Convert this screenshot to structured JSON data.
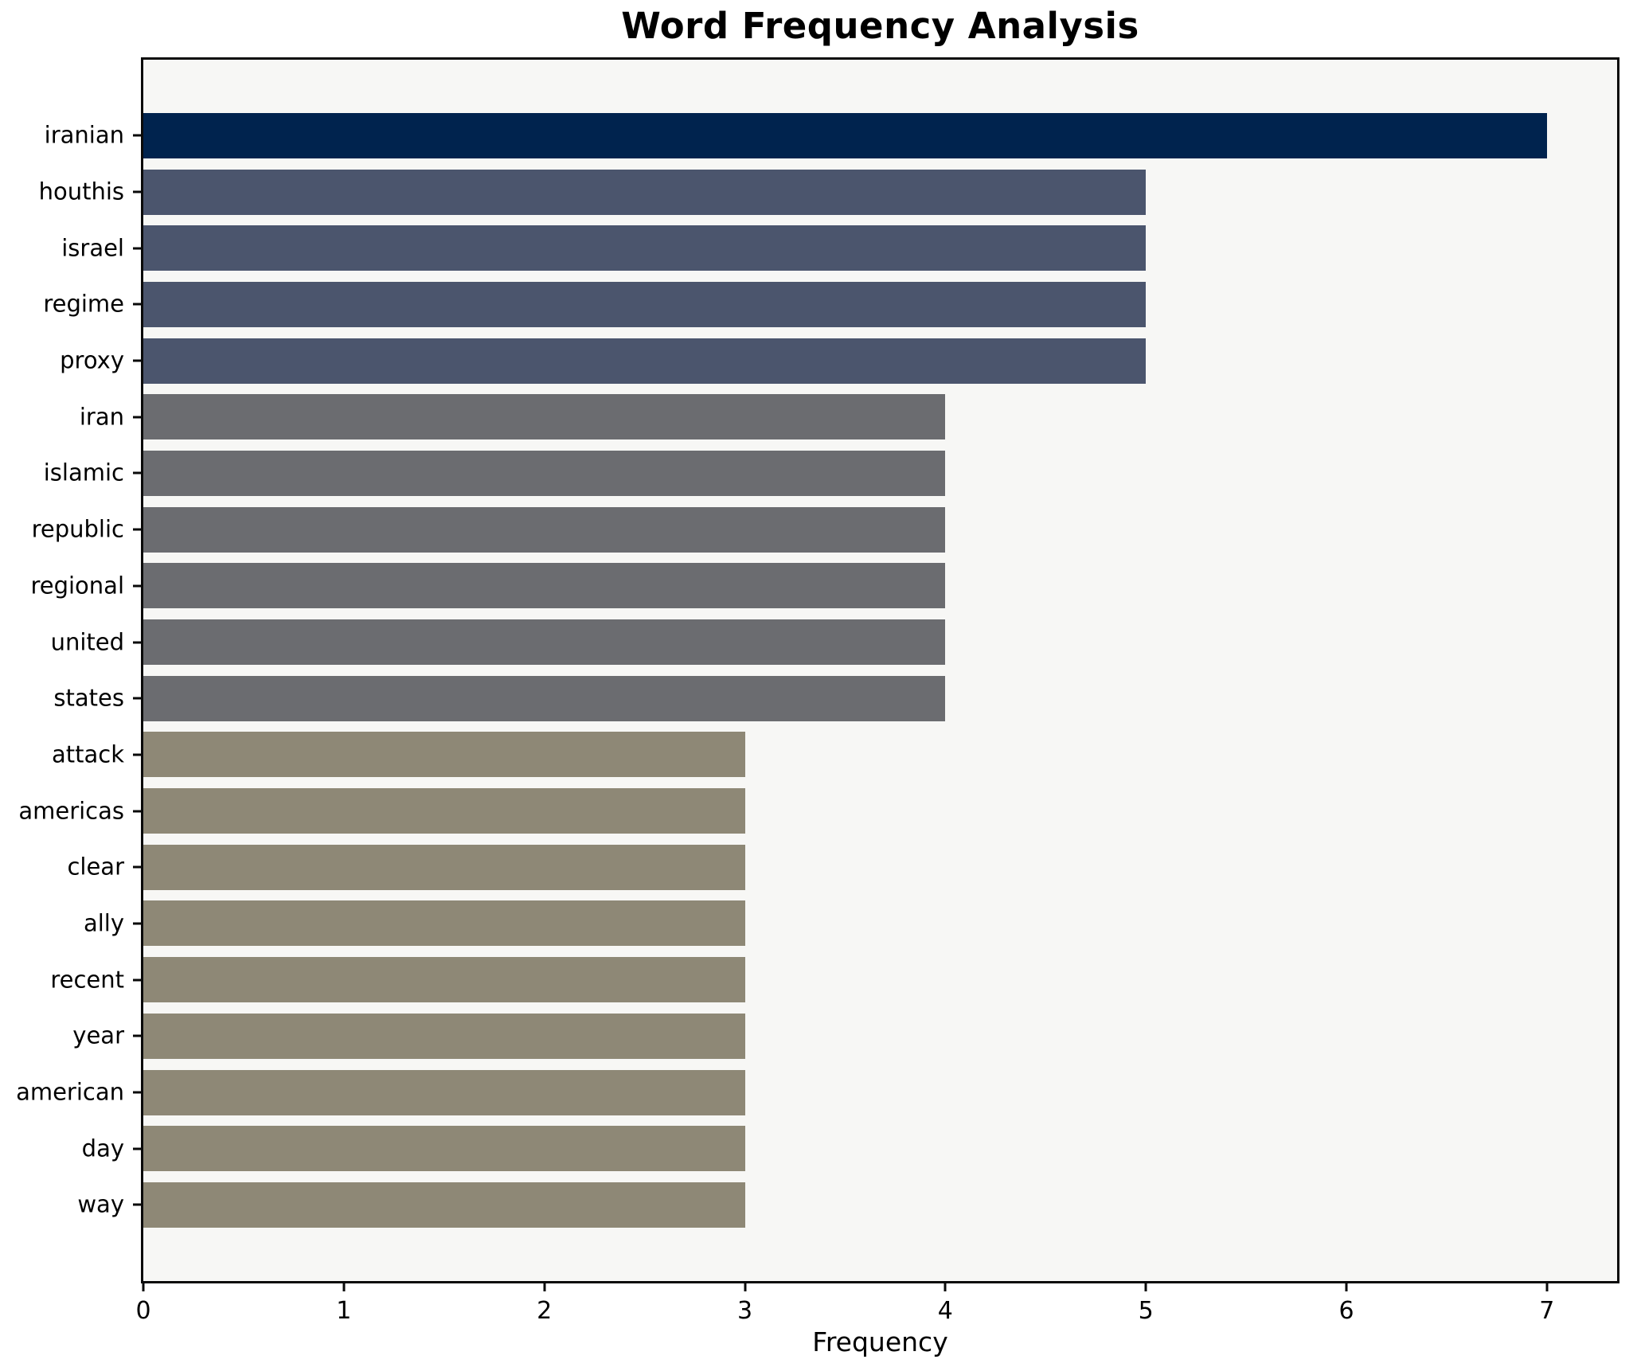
{
  "chart_data": {
    "type": "bar",
    "orientation": "horizontal",
    "title": "Word Frequency Analysis",
    "xlabel": "Frequency",
    "ylabel": "",
    "xlim": [
      0,
      7.35
    ],
    "x_ticks": [
      "0",
      "1",
      "2",
      "3",
      "4",
      "5",
      "6",
      "7"
    ],
    "grid": false,
    "legend": "none",
    "plot_background": "#f7f7f5",
    "figure_background": "#ffffff",
    "spine_color": "#0a0a0a",
    "categories": [
      "iranian",
      "houthis",
      "israel",
      "regime",
      "proxy",
      "iran",
      "islamic",
      "republic",
      "regional",
      "united",
      "states",
      "attack",
      "americas",
      "clear",
      "ally",
      "recent",
      "year",
      "american",
      "day",
      "way"
    ],
    "values": [
      7,
      5,
      5,
      5,
      5,
      4,
      4,
      4,
      4,
      4,
      4,
      3,
      3,
      3,
      3,
      3,
      3,
      3,
      3,
      3
    ],
    "bar_colors": [
      "#00234e",
      "#4b556d",
      "#4b556d",
      "#4b556d",
      "#4b556d",
      "#6b6c70",
      "#6b6c70",
      "#6b6c70",
      "#6b6c70",
      "#6b6c70",
      "#6b6c70",
      "#8e8876",
      "#8e8876",
      "#8e8876",
      "#8e8876",
      "#8e8876",
      "#8e8876",
      "#8e8876",
      "#8e8876",
      "#8e8876"
    ],
    "value_color_map": {
      "7": "#00234e",
      "5": "#4b556d",
      "4": "#6b6c70",
      "3": "#8e8876"
    }
  }
}
